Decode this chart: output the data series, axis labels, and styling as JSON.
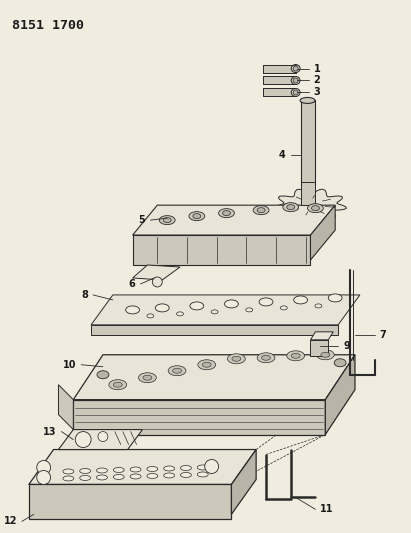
{
  "title": "8151 1700",
  "background_color": "#f0ece0",
  "line_color": "#2a2a2a",
  "text_color": "#1a1a1a",
  "figsize": [
    4.11,
    5.33
  ],
  "dpi": 100,
  "part_fill": "#e8e4d8",
  "part_shade": "#ccc8bc",
  "part_dark": "#b8b4a8"
}
